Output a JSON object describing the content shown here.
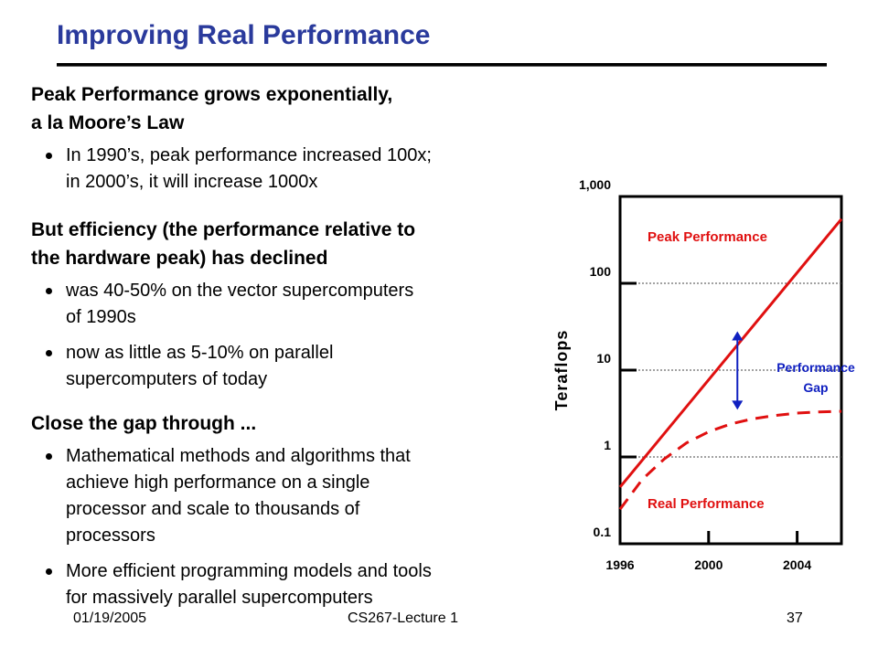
{
  "title": "Improving Real Performance",
  "sections": [
    {
      "heading": [
        "Peak Performance grows exponentially,",
        "a la Moore’s Law"
      ],
      "bullets": [
        [
          "In 1990’s, peak performance increased 100x;",
          "in 2000’s, it will increase 1000x"
        ]
      ]
    },
    {
      "heading": [
        "But efficiency (the performance relative to",
        "the hardware peak) has declined"
      ],
      "bullets": [
        [
          "was 40-50% on the vector supercomputers",
          "of 1990s"
        ],
        [
          "now as little as 5-10% on parallel",
          "supercomputers of today"
        ]
      ]
    },
    {
      "heading": [
        "Close the gap through ..."
      ],
      "bullets": [
        [
          "Mathematical methods and algorithms that",
          "achieve high performance on a single",
          "processor and scale to thousands of",
          "processors"
        ],
        [
          "More efficient programming models and tools",
          "for massively parallel supercomputers"
        ]
      ]
    }
  ],
  "chart_data": {
    "type": "line",
    "ylabel": "Teraflops",
    "y_scale": "log",
    "ylim": [
      0.1,
      1000
    ],
    "xlim": [
      1996,
      2006
    ],
    "x_ticks": [
      "1996",
      "2000",
      "2004"
    ],
    "y_ticks": [
      "0.1",
      "1",
      "10",
      "100",
      "1,000"
    ],
    "gridlines_at": [
      1,
      10,
      100
    ],
    "series": [
      {
        "name": "Peak Performance",
        "style": "solid",
        "color": "#e01010",
        "x": [
          1996,
          2006
        ],
        "y": [
          0.45,
          550
        ]
      },
      {
        "name": "Real Performance",
        "style": "dashed",
        "color": "#e01010",
        "x": [
          1996,
          1997,
          1998,
          1999,
          2000,
          2001,
          2002,
          2003,
          2004,
          2005,
          2006
        ],
        "y": [
          0.25,
          0.55,
          0.95,
          1.45,
          1.95,
          2.4,
          2.75,
          3.0,
          3.2,
          3.3,
          3.35
        ]
      }
    ],
    "annotation": {
      "lines": [
        "Performance",
        "Gap"
      ],
      "color": "#1020c0",
      "x": 2001.3,
      "y_from": 3.5,
      "y_to": 28
    }
  },
  "footer": {
    "date": "01/19/2005",
    "course": "CS267-Lecture 1",
    "page": "37"
  }
}
